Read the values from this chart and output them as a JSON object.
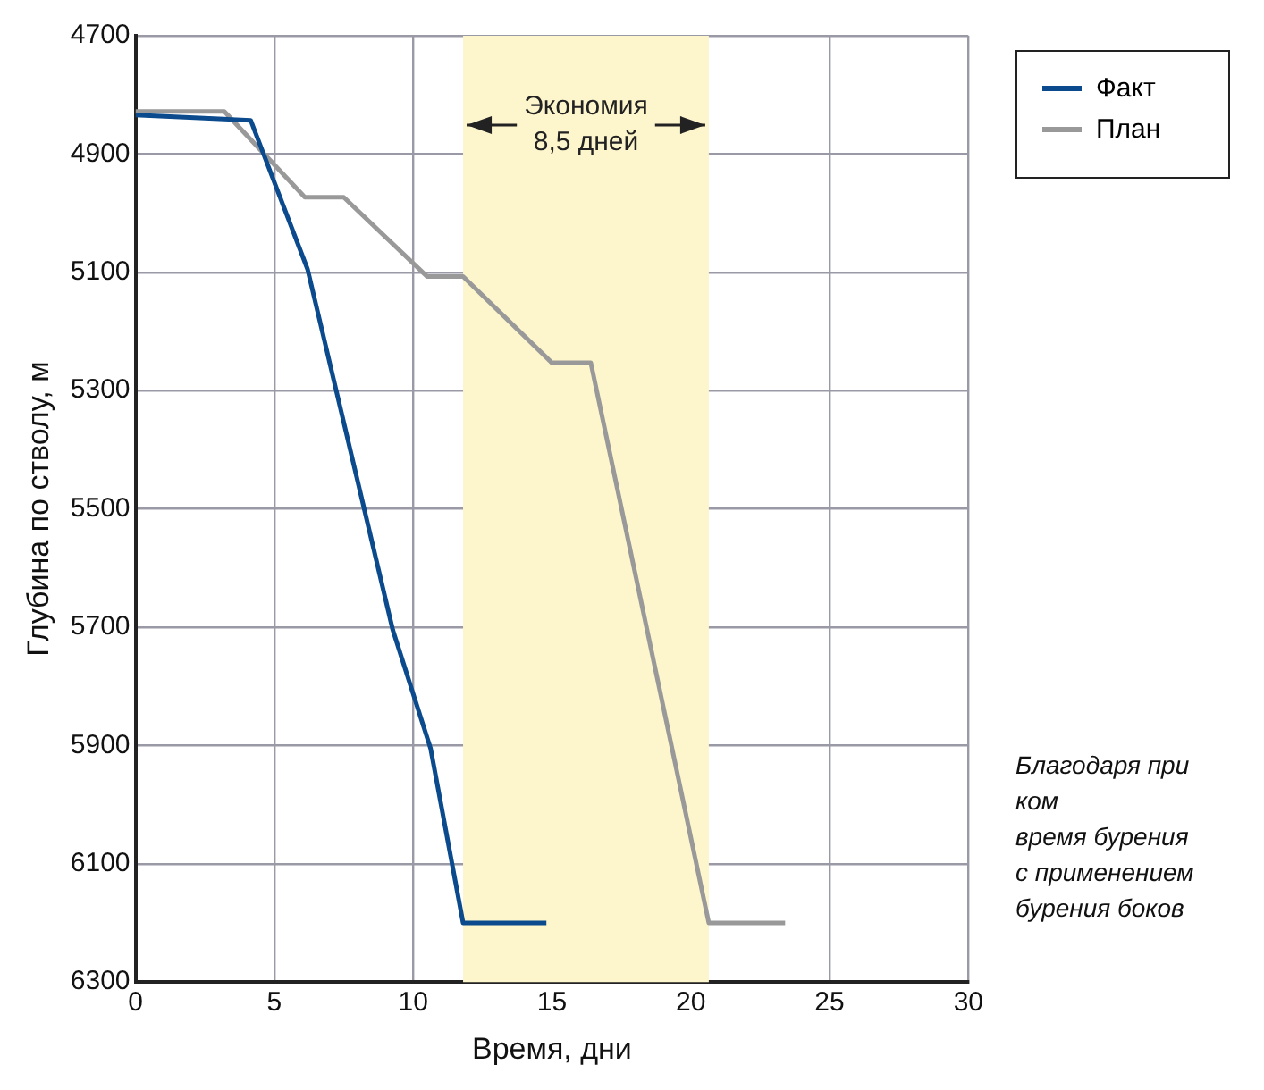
{
  "chart_data": {
    "type": "line",
    "xlabel": "Время, дни",
    "ylabel": "Глубина по стволу, м",
    "xlim": [
      0,
      30
    ],
    "xticks": [
      0,
      5,
      10,
      15,
      20,
      25,
      30
    ],
    "ylim": [
      6300,
      4700
    ],
    "yticks": [
      4700,
      4900,
      5100,
      5300,
      5500,
      5700,
      5900,
      6100,
      6300
    ],
    "grid": true,
    "legend": "top right",
    "line_style": "solid",
    "marker": "none",
    "series": [
      {
        "name": "Факт",
        "color": "#0b4a8c",
        "x": [
          0,
          4.15,
          6.2,
          9.27,
          10.63,
          11.8,
          14.8
        ],
        "values": [
          4834,
          4843,
          5095,
          5705,
          5905,
          6200,
          6200
        ]
      },
      {
        "name": "План",
        "color": "#999999",
        "x": [
          0,
          3.2,
          6.1,
          7.5,
          10.5,
          11.8,
          15.0,
          16.4,
          20.65,
          23.4
        ],
        "values": [
          4828,
          4828,
          4973,
          4973,
          5107,
          5107,
          5253,
          5253,
          6200,
          6200
        ]
      }
    ],
    "bands": [
      {
        "axis": "x",
        "from": 11.8,
        "to": 20.65,
        "label": "Экономия\n8,5 дней",
        "color": "#fdf5cc"
      }
    ],
    "annotations": [
      "Благодаря при\nком\nвремя бурения\nс применением\nбурения боков"
    ]
  }
}
